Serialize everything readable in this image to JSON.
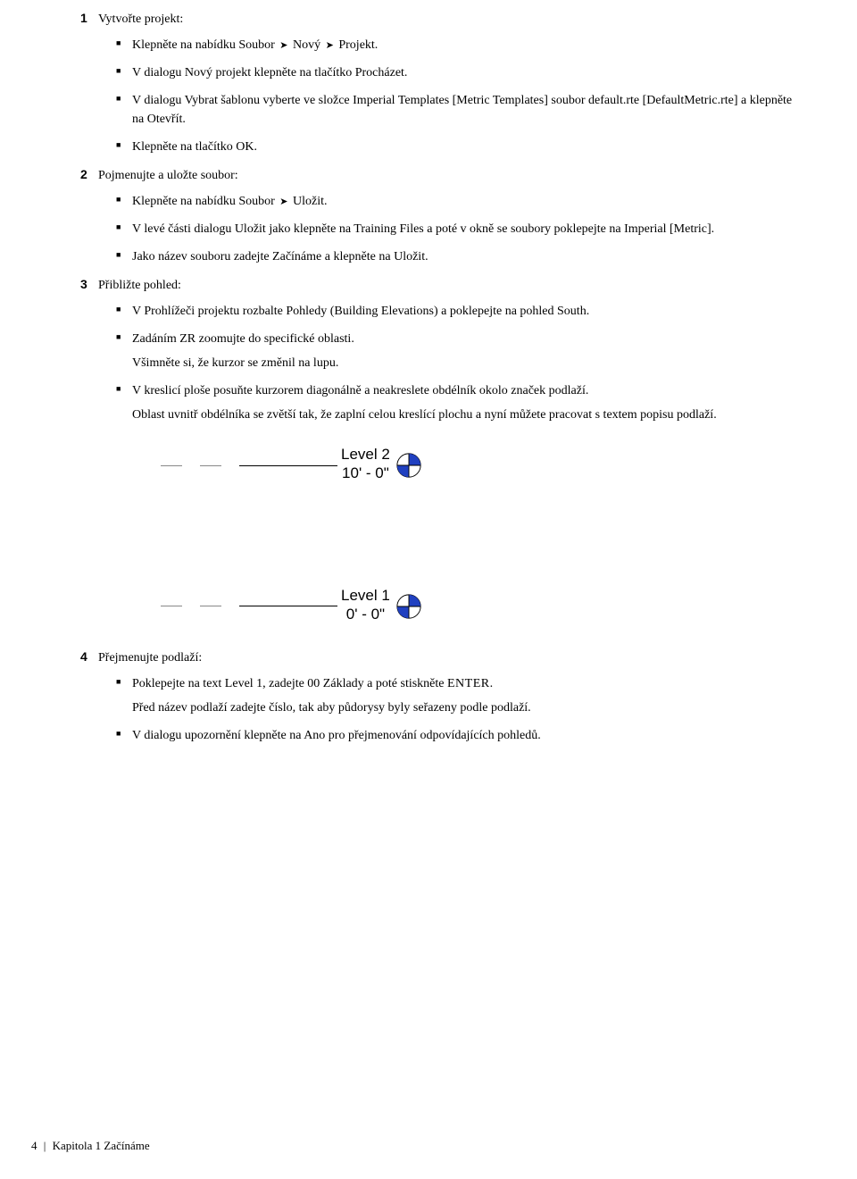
{
  "steps": [
    {
      "num": "1",
      "title": "Vytvořte projekt:",
      "bullets": [
        {
          "parts": [
            "Klepněte na nabídku Soubor ",
            {
              "arrow": true
            },
            " Nový ",
            {
              "arrow": true
            },
            " Projekt."
          ]
        },
        {
          "parts": [
            "V dialogu Nový projekt klepněte na tlačítko Procházet."
          ]
        },
        {
          "parts": [
            "V dialogu Vybrat šablonu vyberte ve složce Imperial Templates [Metric Templates] soubor default.rte [DefaultMetric.rte] a klepněte na Otevřít."
          ]
        },
        {
          "parts": [
            "Klepněte na tlačítko OK."
          ]
        }
      ]
    },
    {
      "num": "2",
      "title": "Pojmenujte a uložte soubor:",
      "bullets": [
        {
          "parts": [
            "Klepněte na nabídku Soubor ",
            {
              "arrow": true
            },
            " Uložit."
          ]
        },
        {
          "parts": [
            "V levé části dialogu Uložit jako klepněte na Training Files a poté v okně se soubory poklepejte na Imperial [Metric]."
          ]
        },
        {
          "parts": [
            "Jako název souboru zadejte Začínáme a klepněte na Uložit."
          ]
        }
      ]
    },
    {
      "num": "3",
      "title": "Přibližte pohled:",
      "bullets": [
        {
          "parts": [
            "V Prohlížeči projektu rozbalte Pohledy (Building Elevations) a poklepejte na pohled South."
          ]
        },
        {
          "parts": [
            "Zadáním ZR zoomujte do specifické oblasti."
          ],
          "sub": "Všimněte si, že kurzor se změnil na lupu."
        },
        {
          "parts": [
            "V kreslicí ploše posuňte kurzorem diagonálně a neakreslete obdélník okolo značek podlaží."
          ],
          "sub": "Oblast uvnitř obdélníka se zvětší tak, že zaplní celou kreslící plochu a nyní můžete pracovat s textem popisu podlaží."
        }
      ]
    },
    {
      "num": "4",
      "title": "Přejmenujte podlaží:",
      "bullets": [
        {
          "parts": [
            "Poklepejte na text Level 1, zadejte 00 Základy a poté stiskněte ",
            {
              "sc": "ENTER"
            },
            "."
          ],
          "sub": "Před název podlaží zadejte číslo, tak aby půdorysy byly seřazeny podle podlaží."
        },
        {
          "parts": [
            "V dialogu upozornění klepněte na Ano pro přejmenování odpovídajících pohledů."
          ]
        }
      ]
    }
  ],
  "figure": {
    "levels": [
      {
        "name": "Level 2",
        "value": "10' - 0\""
      },
      {
        "name": "Level 1",
        "value": "0' - 0\""
      }
    ],
    "marker_fill": "#2040c0",
    "marker_stroke": "#000000"
  },
  "footer": {
    "page_num": "4",
    "sep": "|",
    "chapter": "Kapitola 1   Začínáme"
  }
}
